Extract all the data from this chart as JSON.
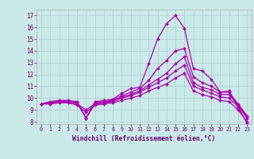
{
  "background_color": "#cce9e9",
  "grid_color": "#aacccc",
  "line_color": "#aa00aa",
  "xlabel": "Windchill (Refroidissement éolien,°C)",
  "xlabel_color": "#660066",
  "tick_color": "#660066",
  "ylim": [
    7.8,
    17.5
  ],
  "xlim": [
    -0.5,
    23.5
  ],
  "yticks": [
    8,
    9,
    10,
    11,
    12,
    13,
    14,
    15,
    16,
    17
  ],
  "xticks": [
    0,
    1,
    2,
    3,
    4,
    5,
    6,
    7,
    8,
    9,
    10,
    11,
    12,
    13,
    14,
    15,
    16,
    17,
    18,
    19,
    20,
    21,
    22,
    23
  ],
  "curves": [
    [
      9.5,
      9.7,
      9.8,
      9.8,
      9.7,
      8.3,
      9.7,
      9.8,
      9.9,
      10.4,
      10.8,
      10.9,
      12.9,
      15.0,
      16.3,
      17.0,
      15.9,
      12.5,
      12.3,
      11.6,
      10.5,
      10.6,
      9.2,
      7.9
    ],
    [
      9.5,
      9.6,
      9.7,
      9.7,
      9.6,
      8.3,
      9.6,
      9.7,
      9.8,
      10.2,
      10.5,
      10.8,
      11.5,
      12.5,
      13.2,
      14.0,
      14.2,
      11.8,
      11.3,
      11.0,
      10.5,
      10.5,
      9.5,
      8.5
    ],
    [
      9.5,
      9.6,
      9.7,
      9.7,
      9.6,
      8.3,
      9.5,
      9.6,
      9.8,
      10.1,
      10.3,
      10.6,
      11.1,
      11.6,
      12.1,
      12.9,
      13.5,
      11.3,
      10.9,
      10.7,
      10.3,
      10.3,
      9.4,
      8.4
    ],
    [
      9.5,
      9.6,
      9.7,
      9.7,
      9.5,
      9.0,
      9.5,
      9.6,
      9.7,
      10.0,
      10.2,
      10.5,
      10.9,
      11.3,
      11.7,
      12.3,
      12.8,
      11.0,
      10.7,
      10.4,
      10.1,
      10.0,
      9.3,
      8.3
    ],
    [
      9.5,
      9.5,
      9.6,
      9.6,
      9.4,
      8.8,
      9.4,
      9.5,
      9.6,
      9.8,
      10.0,
      10.2,
      10.6,
      10.9,
      11.2,
      11.7,
      12.1,
      10.6,
      10.3,
      10.1,
      9.8,
      9.7,
      9.0,
      8.0
    ]
  ]
}
